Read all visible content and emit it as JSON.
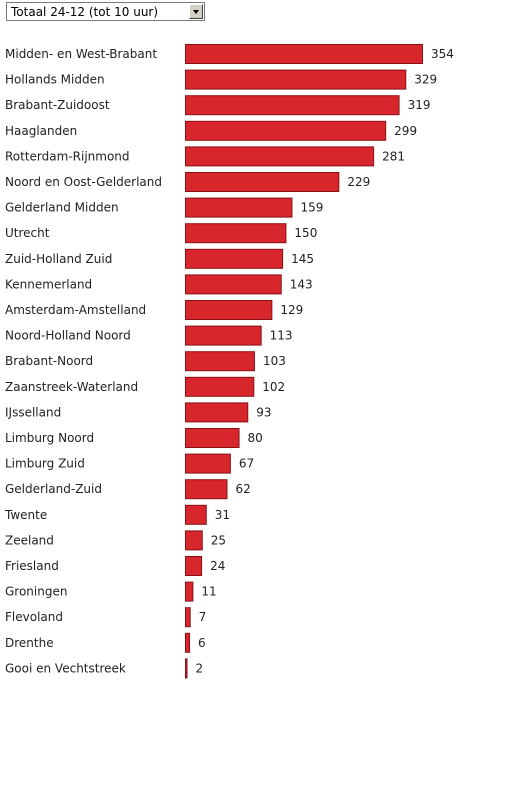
{
  "filter": {
    "selected": "Totaal 24-12 (tot 10 uur)",
    "icon": "chevron-down-icon"
  },
  "chart_data": {
    "type": "bar",
    "orientation": "horizontal",
    "bar_color": "#d7262c",
    "bar_border_color": "#8a1015",
    "categories": [
      "Midden- en West-Brabant",
      "Hollands Midden",
      "Brabant-Zuidoost",
      "Haaglanden",
      "Rotterdam-Rijnmond",
      "Noord en Oost-Gelderland",
      "Gelderland Midden",
      "Utrecht",
      "Zuid-Holland Zuid",
      "Kennemerland",
      "Amsterdam-Amstelland",
      "Noord-Holland Noord",
      "Brabant-Noord",
      "Zaanstreek-Waterland",
      "IJsselland",
      "Limburg Noord",
      "Limburg Zuid",
      "Gelderland-Zuid",
      "Twente",
      "Zeeland",
      "Friesland",
      "Groningen",
      "Flevoland",
      "Drenthe",
      "Gooi en Vechtstreek"
    ],
    "values": [
      354,
      329,
      319,
      299,
      281,
      229,
      159,
      150,
      145,
      143,
      129,
      113,
      103,
      102,
      93,
      80,
      67,
      62,
      31,
      25,
      24,
      11,
      7,
      6,
      2
    ],
    "xlim": [
      0,
      354
    ],
    "grid": false,
    "legend": "none"
  }
}
